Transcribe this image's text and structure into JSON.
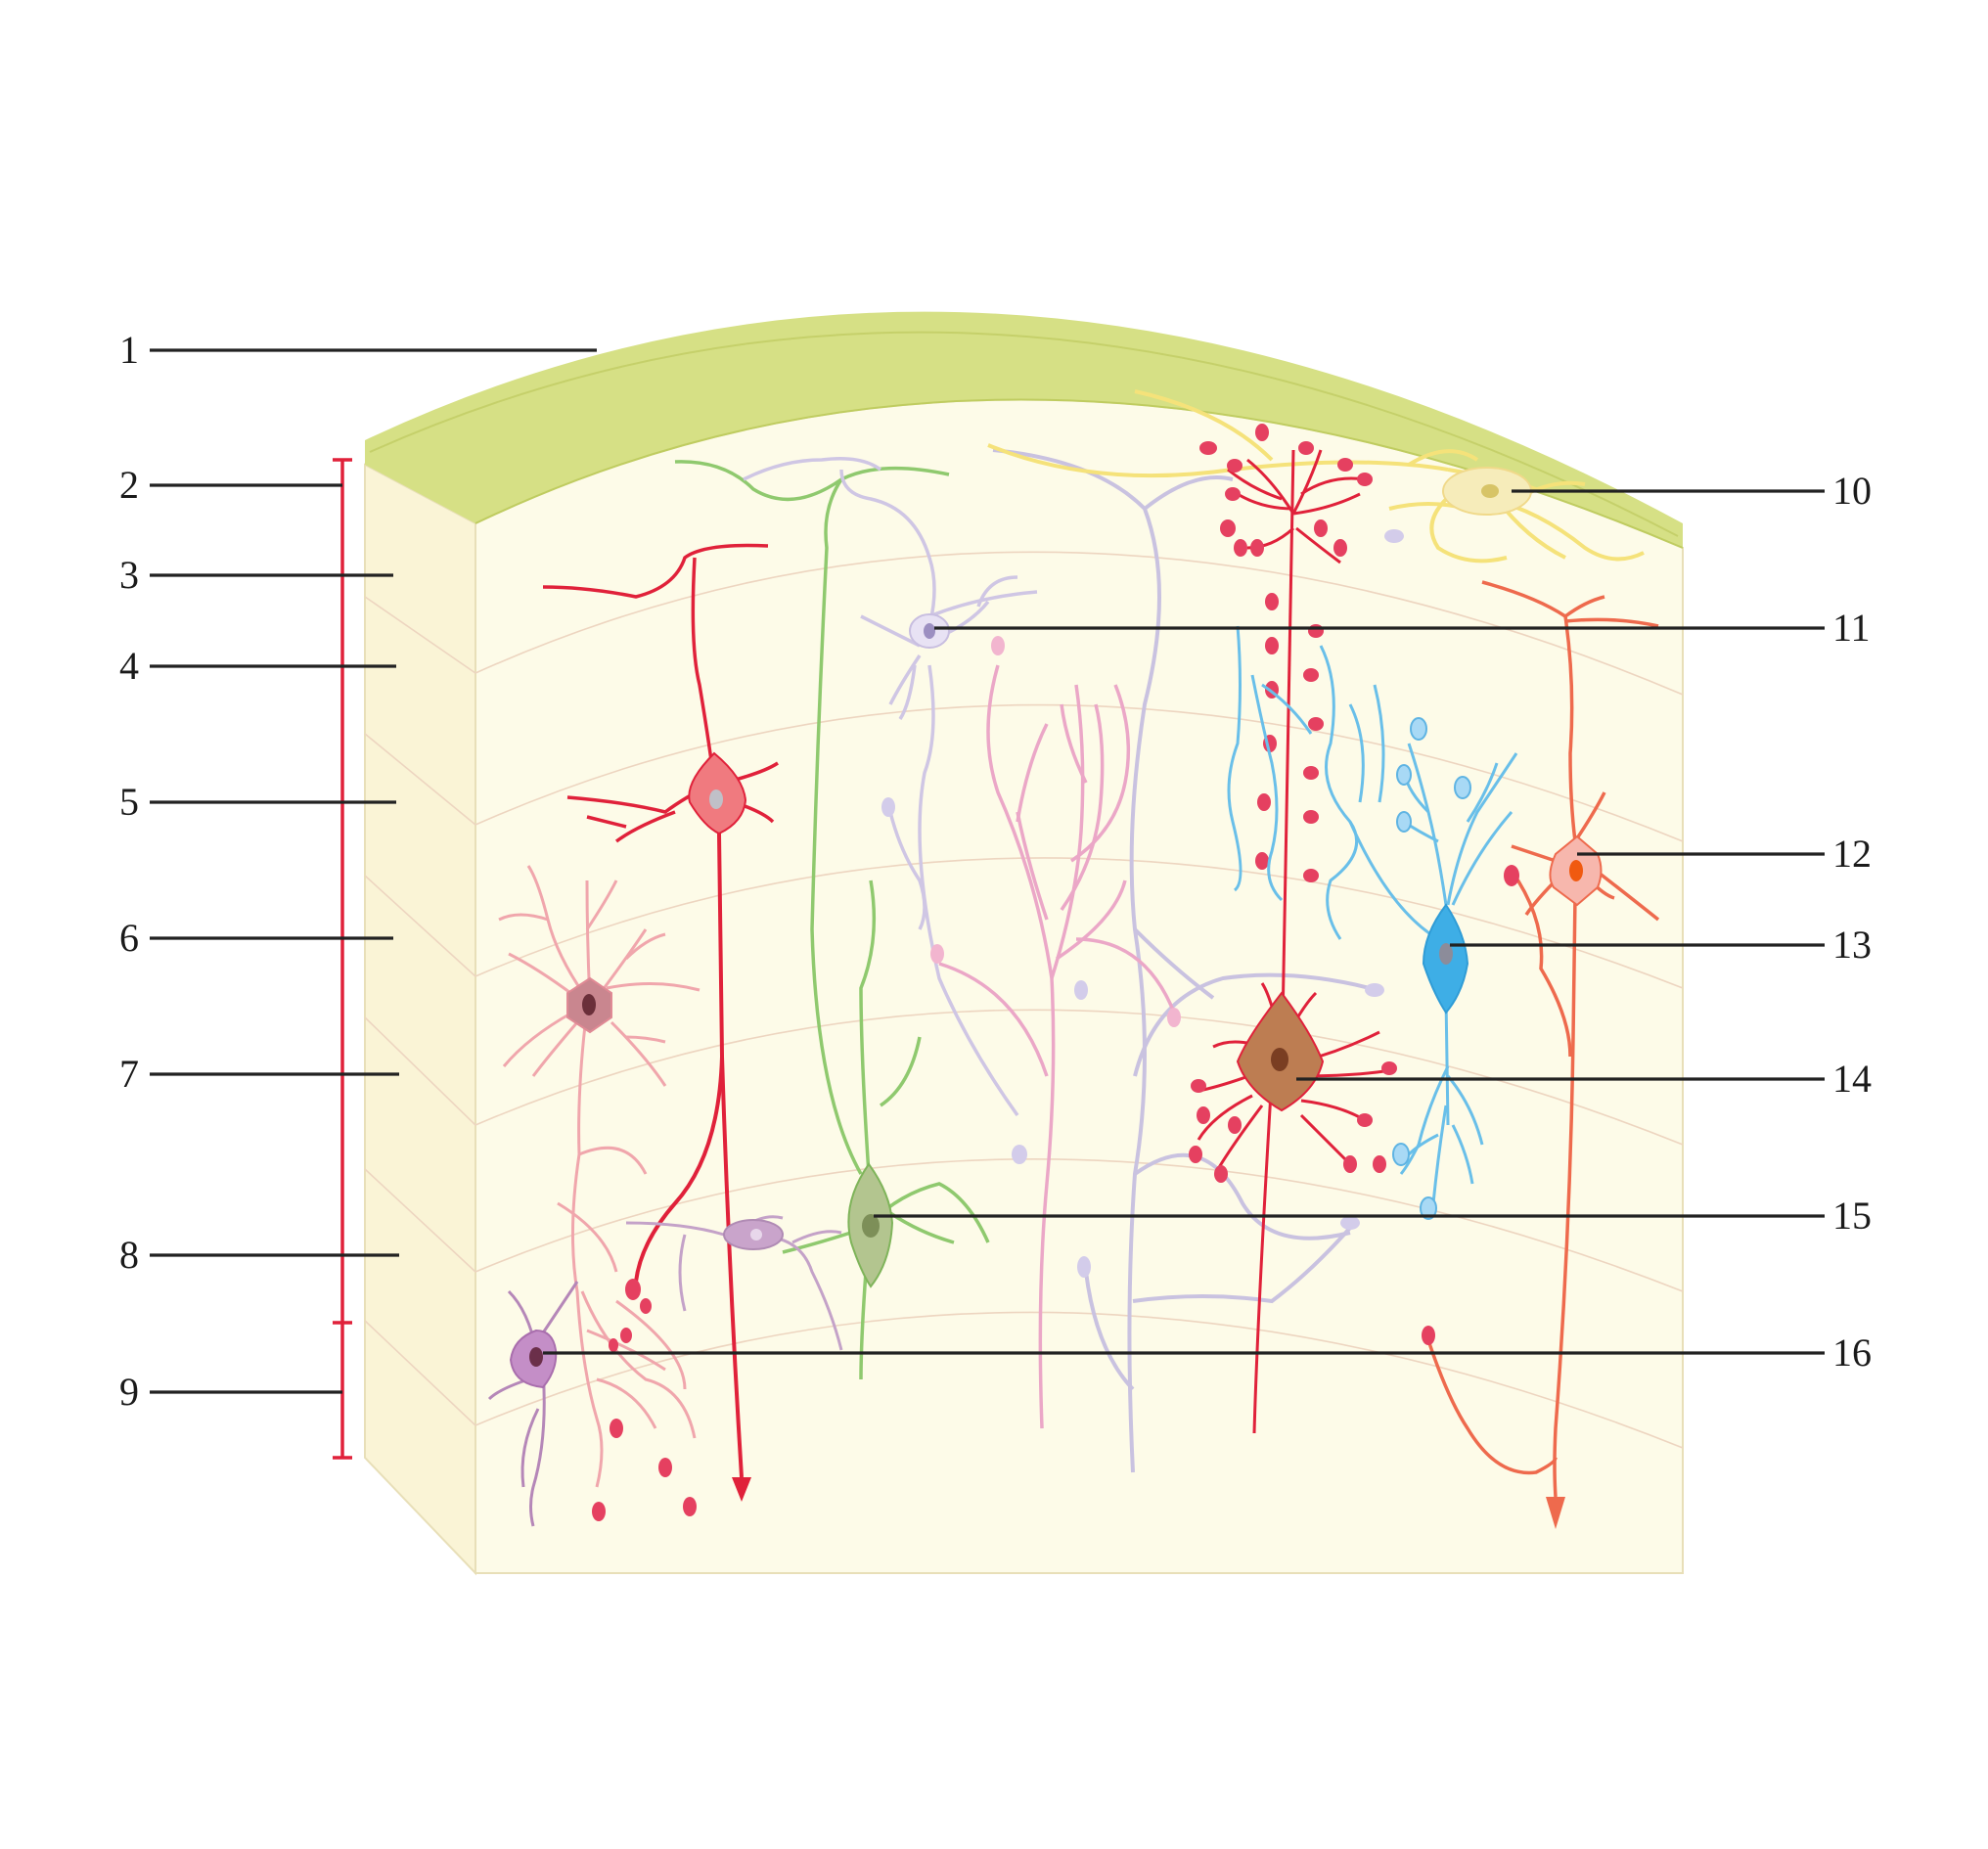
{
  "colors": {
    "background": "#ffffff",
    "pia": "#d6e085",
    "tissue_front": "#fdfbe8",
    "tissue_side": "#faf4d6",
    "scale_bar": "#e0213a",
    "leader": "#222222"
  },
  "labels_left": [
    "1",
    "2",
    "3",
    "4",
    "5",
    "6",
    "7",
    "8",
    "9"
  ],
  "labels_right": [
    "10",
    "11",
    "12",
    "13",
    "14",
    "15",
    "16"
  ]
}
